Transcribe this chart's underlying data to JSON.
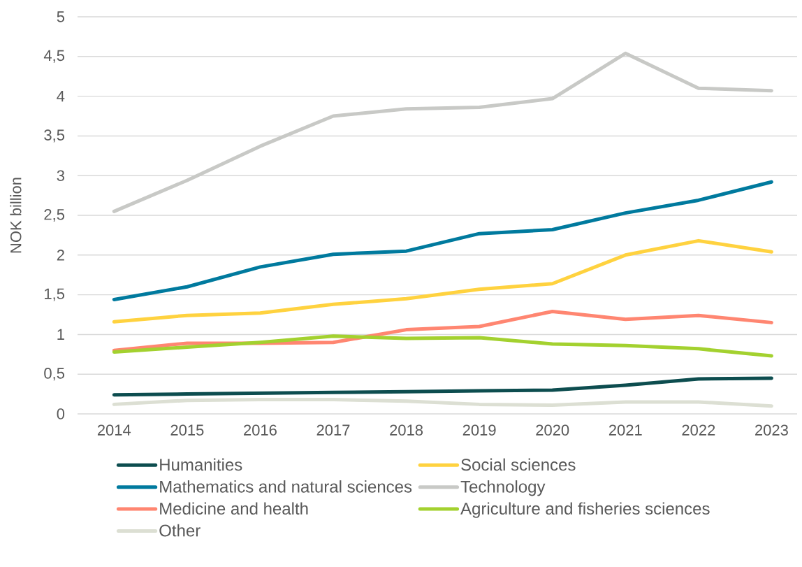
{
  "chart_data": {
    "type": "line",
    "ylabel": "NOK billion",
    "categories": [
      "2014",
      "2015",
      "2016",
      "2017",
      "2018",
      "2019",
      "2020",
      "2021",
      "2022",
      "2023"
    ],
    "series": [
      {
        "name": "Humanities",
        "color": "#0d4d4f",
        "values": [
          0.24,
          0.25,
          0.26,
          0.27,
          0.28,
          0.29,
          0.3,
          0.36,
          0.44,
          0.45
        ]
      },
      {
        "name": "Social sciences",
        "color": "#ffd23f",
        "values": [
          1.16,
          1.24,
          1.27,
          1.38,
          1.45,
          1.57,
          1.64,
          2.0,
          2.18,
          2.04
        ]
      },
      {
        "name": "Mathematics and natural sciences",
        "color": "#007a9e",
        "values": [
          1.44,
          1.6,
          1.85,
          2.01,
          2.05,
          2.27,
          2.32,
          2.53,
          2.69,
          2.92
        ]
      },
      {
        "name": "Technology",
        "color": "#c8c9c6",
        "values": [
          2.55,
          2.94,
          3.37,
          3.75,
          3.84,
          3.86,
          3.97,
          4.54,
          4.1,
          4.07
        ]
      },
      {
        "name": "Medicine and health",
        "color": "#ff8671",
        "values": [
          0.8,
          0.89,
          0.89,
          0.9,
          1.06,
          1.1,
          1.29,
          1.19,
          1.24,
          1.15
        ]
      },
      {
        "name": "Agriculture and fisheries sciences",
        "color": "#a3d12f",
        "values": [
          0.78,
          0.84,
          0.9,
          0.98,
          0.95,
          0.96,
          0.88,
          0.86,
          0.82,
          0.73
        ]
      },
      {
        "name": "Other",
        "color": "#dcdfd3",
        "values": [
          0.12,
          0.17,
          0.18,
          0.18,
          0.16,
          0.12,
          0.11,
          0.15,
          0.15,
          0.1
        ]
      }
    ],
    "ylim": [
      0,
      5
    ],
    "yticks": [
      0,
      {
        "value": 0.5,
        "label": "0,5"
      },
      1,
      {
        "value": 1.5,
        "label": "1,5"
      },
      2,
      {
        "value": 2.5,
        "label": "2,5"
      },
      3,
      {
        "value": 3.5,
        "label": "3,5"
      },
      4,
      {
        "value": 4.5,
        "label": "4,5"
      },
      5
    ],
    "grid": "y",
    "legend": "bottom",
    "marker": "none",
    "line_style": "solid"
  }
}
